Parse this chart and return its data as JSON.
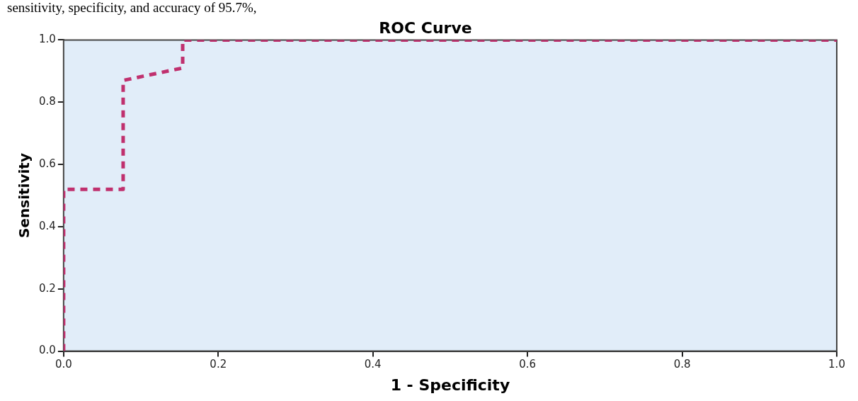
{
  "chart_data": {
    "type": "line",
    "title": "ROC Curve",
    "xlabel": "1 - Specificity",
    "ylabel": "Sensitivity",
    "annotations": [
      "sensitivity, specificity, and accuracy of 95.7%,"
    ],
    "x": [
      0,
      0,
      0.077,
      0.077,
      0.154,
      0.154,
      1
    ],
    "series": [
      {
        "color": "#c0306e",
        "values": [
          0,
          0.52,
          0.52,
          0.87,
          0.91,
          1,
          1
        ]
      }
    ],
    "xlim": [
      0,
      1
    ],
    "ylim": [
      0,
      1
    ],
    "xticks": [
      {
        "value": 0,
        "label": "0.0"
      },
      0.2,
      0.4,
      0.6,
      0.8,
      {
        "value": 1,
        "label": "1.0"
      }
    ],
    "yticks": [
      {
        "value": 0,
        "label": "0.0"
      },
      0.2,
      0.4,
      0.6,
      0.8,
      {
        "value": 1,
        "label": "1.0"
      }
    ],
    "grid": false,
    "legend": false,
    "marker": "none",
    "line_style": "dashed"
  }
}
